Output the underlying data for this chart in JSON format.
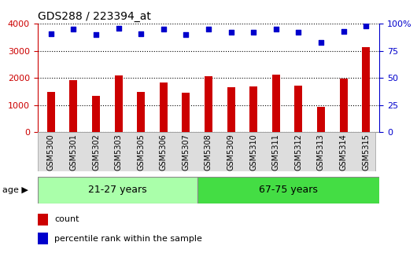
{
  "title": "GDS288 / 223394_at",
  "categories": [
    "GSM5300",
    "GSM5301",
    "GSM5302",
    "GSM5303",
    "GSM5305",
    "GSM5306",
    "GSM5307",
    "GSM5308",
    "GSM5309",
    "GSM5310",
    "GSM5311",
    "GSM5312",
    "GSM5313",
    "GSM5314",
    "GSM5315"
  ],
  "counts": [
    1480,
    1920,
    1330,
    2090,
    1470,
    1820,
    1440,
    2060,
    1650,
    1680,
    2110,
    1700,
    940,
    1980,
    3130
  ],
  "percentiles": [
    91,
    95,
    90,
    96,
    91,
    95,
    90,
    95,
    92,
    92,
    95,
    92,
    83,
    93,
    98
  ],
  "bar_color": "#cc0000",
  "dot_color": "#0000cc",
  "group1_label": "21-27 years",
  "group2_label": "67-75 years",
  "group1_count": 7,
  "group2_count": 8,
  "group1_color": "#aaffaa",
  "group2_color": "#44dd44",
  "ylim_left": [
    0,
    4000
  ],
  "ylim_right": [
    0,
    100
  ],
  "yticks_left": [
    0,
    1000,
    2000,
    3000,
    4000
  ],
  "yticks_right": [
    0,
    25,
    50,
    75,
    100
  ],
  "legend_count_label": "count",
  "legend_pct_label": "percentile rank within the sample",
  "xticklabel_bg": "#dddddd",
  "plot_bg_color": "#ffffff",
  "grid_color": "#000000",
  "border_color": "#aaaaaa"
}
